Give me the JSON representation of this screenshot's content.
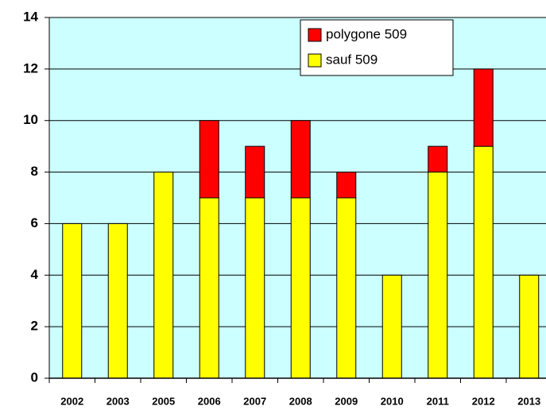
{
  "chart_data": {
    "type": "stacked_bar",
    "categories": [
      "2002",
      "2003",
      "2005",
      "2006",
      "2007",
      "2008",
      "2009",
      "2010",
      "2011",
      "2012",
      "2013"
    ],
    "series": [
      {
        "name": "sauf 509",
        "color": "#ffff00",
        "values": [
          6,
          6,
          8,
          7,
          7,
          7,
          7,
          4,
          8,
          9,
          4
        ]
      },
      {
        "name": "polygone 509",
        "color": "#ff0000",
        "values": [
          0,
          0,
          0,
          3,
          2,
          3,
          1,
          0,
          1,
          3,
          0
        ]
      }
    ],
    "ylim": [
      0,
      14
    ],
    "yticks": [
      0,
      2,
      4,
      6,
      8,
      10,
      12,
      14
    ],
    "grid": true,
    "legend": "top-right"
  }
}
